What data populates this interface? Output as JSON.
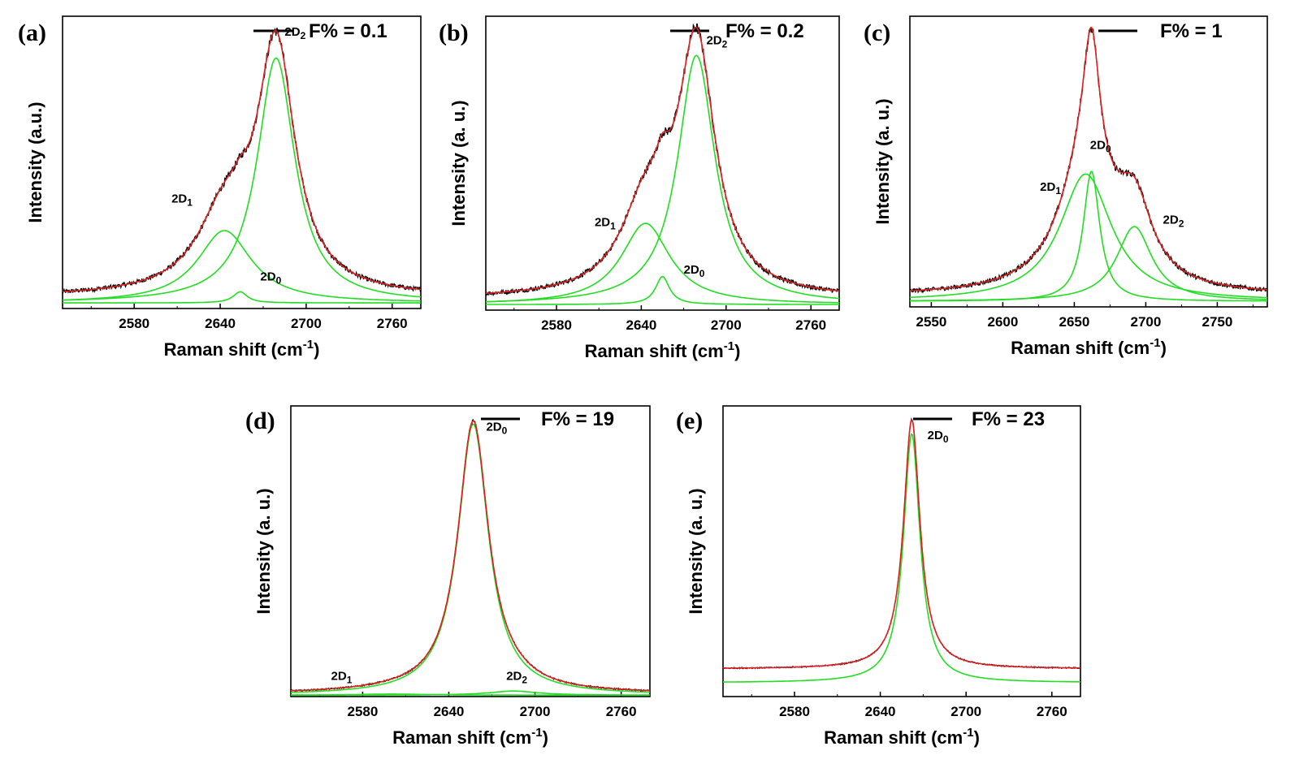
{
  "figure": {
    "description_free": true,
    "panels_count": 5
  },
  "chart_data": [
    {
      "type": "line",
      "panel_label": "(a)",
      "legend": {
        "label": "F% = 0.1",
        "color": "#000000",
        "position": "top-right"
      },
      "xlabel": "Raman shift (cm",
      "xlabel_sup": "-1",
      "xlabel_close": ")",
      "ylabel": "Intensity (a.u.)",
      "xlim": [
        2530,
        2780
      ],
      "ylim": [
        0,
        1.05
      ],
      "xticks": [
        2580,
        2640,
        2700,
        2760
      ],
      "xtick_labels": [
        "2580",
        "2640",
        "2700",
        "2760"
      ],
      "baseline": 0.04,
      "components": [
        {
          "name": "2D",
          "sub": "1",
          "center": 2643,
          "width": 46,
          "height": 0.26,
          "label_x": 2606,
          "label_y": 0.38
        },
        {
          "name": "2D",
          "sub": "0",
          "center": 2654,
          "width": 12,
          "height": 0.04,
          "label_x": 2668,
          "label_y": 0.1
        },
        {
          "name": "2D",
          "sub": "2",
          "center": 2679,
          "width": 32,
          "height": 0.88,
          "label_x": 2685,
          "label_y": 0.98
        }
      ],
      "colors": {
        "data": "#000000",
        "fit": "#e02020",
        "component": "#22dd22"
      },
      "noise": 0.012
    },
    {
      "type": "line",
      "panel_label": "(b)",
      "legend": {
        "label": "F% = 0.2",
        "color": "#000000",
        "position": "top-right"
      },
      "xlabel": "Raman shift (cm",
      "xlabel_sup": "-1",
      "xlabel_close": ")",
      "ylabel": "Intensity (a. u.)",
      "xlim": [
        2530,
        2780
      ],
      "ylim": [
        0,
        1.05
      ],
      "xticks": [
        2580,
        2640,
        2700,
        2760
      ],
      "xtick_labels": [
        "2580",
        "2640",
        "2700",
        "2760"
      ],
      "baseline": 0.04,
      "components": [
        {
          "name": "2D",
          "sub": "1",
          "center": 2643,
          "width": 42,
          "height": 0.29,
          "label_x": 2607,
          "label_y": 0.3
        },
        {
          "name": "2D",
          "sub": "0",
          "center": 2655,
          "width": 12,
          "height": 0.1,
          "label_x": 2670,
          "label_y": 0.13
        },
        {
          "name": "2D",
          "sub": "2",
          "center": 2679,
          "width": 32,
          "height": 0.89,
          "label_x": 2686,
          "label_y": 0.95
        }
      ],
      "colors": {
        "data": "#000000",
        "fit": "#e02020",
        "component": "#22dd22"
      },
      "noise": 0.012
    },
    {
      "type": "line",
      "panel_label": "(c)",
      "legend": {
        "label": "F% = 1",
        "color": "#000000",
        "position": "top-right"
      },
      "xlabel": "Raman shift (cm",
      "xlabel_sup": "-1",
      "xlabel_close": ")",
      "ylabel": "Intensity (a. u.)",
      "xlim": [
        2535,
        2785
      ],
      "ylim": [
        0,
        1.05
      ],
      "xticks": [
        2550,
        2600,
        2650,
        2700,
        2750
      ],
      "xtick_labels": [
        "2550",
        "2600",
        "2650",
        "2700",
        "2750"
      ],
      "baseline": 0.04,
      "components": [
        {
          "name": "2D",
          "sub": "1",
          "center": 2658,
          "width": 44,
          "height": 0.46,
          "label_x": 2626,
          "label_y": 0.42
        },
        {
          "name": "2D",
          "sub": "0",
          "center": 2662,
          "width": 14,
          "height": 0.47,
          "label_x": 2661,
          "label_y": 0.57
        },
        {
          "name": "2D",
          "sub": "2",
          "center": 2692,
          "width": 30,
          "height": 0.27,
          "label_x": 2712,
          "label_y": 0.3
        }
      ],
      "colors": {
        "data": "#000000",
        "fit": "#e02020",
        "component": "#22dd22"
      },
      "noise": 0.012
    },
    {
      "type": "line",
      "panel_label": "(d)",
      "legend": {
        "label": "F% = 19",
        "color": "#000000",
        "position": "top-right"
      },
      "xlabel": "Raman shift (cm",
      "xlabel_sup": "-1",
      "xlabel_close": ")",
      "ylabel": "Intensity (a. u.)",
      "xlim": [
        2530,
        2780
      ],
      "ylim": [
        0,
        1.05
      ],
      "xticks": [
        2580,
        2640,
        2700,
        2760
      ],
      "xtick_labels": [
        "2580",
        "2640",
        "2700",
        "2760"
      ],
      "baseline": 0.01,
      "components": [
        {
          "name": "2D",
          "sub": "1",
          "center": 2600,
          "width": 60,
          "height": 0.004,
          "label_x": 2558,
          "label_y": 0.06
        },
        {
          "name": "2D",
          "sub": "0",
          "center": 2657,
          "width": 26,
          "height": 0.98,
          "label_x": 2666,
          "label_y": 0.96
        },
        {
          "name": "2D",
          "sub": "2",
          "center": 2685,
          "width": 40,
          "height": 0.015,
          "label_x": 2680,
          "label_y": 0.06
        }
      ],
      "colors": {
        "data": "#000000",
        "fit": "#e02020",
        "component": "#22dd22"
      },
      "noise": 0.004
    },
    {
      "type": "line",
      "panel_label": "(e)",
      "legend": {
        "label": "F% = 23",
        "color": "#000000",
        "position": "top-right"
      },
      "xlabel": "Raman shift (cm",
      "xlabel_sup": "-1",
      "xlabel_close": ")",
      "ylabel": "Intensity (a. u.)",
      "xlim": [
        2530,
        2780
      ],
      "ylim": [
        0,
        1.05
      ],
      "xticks": [
        2580,
        2640,
        2700,
        2760
      ],
      "xtick_labels": [
        "2580",
        "2640",
        "2700",
        "2760"
      ],
      "baseline": 0.1,
      "components": [
        {
          "name": "2D",
          "sub": "0",
          "center": 2662,
          "width": 14,
          "height": 0.9,
          "label_x": 2673,
          "label_y": 0.93
        }
      ],
      "colors": {
        "data": "#000000",
        "fit": "#e02020",
        "component": "#22dd22"
      },
      "noise": 0.003
    }
  ]
}
